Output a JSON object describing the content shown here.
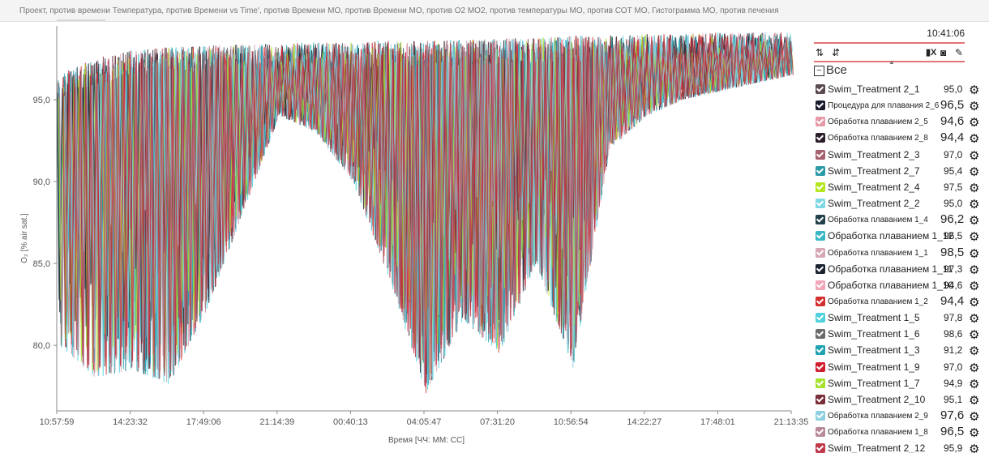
{
  "header": {
    "tabs_text": "Проект, против времени Температура, против Времени vs Time', против Времени МО, против Времени МО, против О2 МО2, против температуры МО, против СОТ МО, Гистограмма МО, против печения"
  },
  "panel": {
    "clock": "10:41:06",
    "all_label": "Все",
    "icons": [
      "sort-asc-icon",
      "sort-desc-icon",
      "excel-icon",
      "camera-icon",
      "wrench-icon"
    ],
    "items": [
      {
        "label": "Swim_Treatment 2_1",
        "value": "95,0",
        "color": "#5b4a4f"
      },
      {
        "label": "Процедура для плавания 2_6",
        "value": "96,5",
        "color": "#1b1b2e"
      },
      {
        "label": "Обработка плаванием 2_5",
        "value": "94,6",
        "color": "#e79aa8"
      },
      {
        "label": "Обработка плаванием 2_8",
        "value": "94,4",
        "color": "#2b1e2a"
      },
      {
        "label": "Swim_Treatment 2_3",
        "value": "97,0",
        "color": "#a7606d"
      },
      {
        "label": "Swim_Treatment 2_7",
        "value": "95,4",
        "color": "#2b9aa7"
      },
      {
        "label": "Swim_Treatment 2_4",
        "value": "97,5",
        "color": "#b5e61d"
      },
      {
        "label": "Swim_Treatment 2_2",
        "value": "95,0",
        "color": "#7fd8e4"
      },
      {
        "label": "Обработка плаванием 1_4",
        "value": "96,2",
        "color": "#22404a"
      },
      {
        "label": "Обработка плаванием 1_12",
        "value": "96,5",
        "color": "#3bb8c6"
      },
      {
        "label": "Обработка плаванием 1_1",
        "value": "98,5",
        "color": "#d7a7b6"
      },
      {
        "label": "Обработка плаванием 1_11",
        "value": "97,3",
        "color": "#1a2330"
      },
      {
        "label": "Обработка плаванием 1_10",
        "value": "94,6",
        "color": "#f2a5b6"
      },
      {
        "label": "Обработка плаванием 1_2",
        "value": "94,4",
        "color": "#d32f2f"
      },
      {
        "label": "Swim_Treatment 1_5",
        "value": "97,8",
        "color": "#4fd0de"
      },
      {
        "label": "Swim_Treatment 1_6",
        "value": "98,6",
        "color": "#6b6b6b"
      },
      {
        "label": "Swim_Treatment 1_3",
        "value": "91,2",
        "color": "#1fa3b3"
      },
      {
        "label": "Swim_Treatment 1_9",
        "value": "97,0",
        "color": "#d11f2f"
      },
      {
        "label": "Swim_Treatment 1_7",
        "value": "94,9",
        "color": "#a6e22e"
      },
      {
        "label": "Swim_Treatment 2_10",
        "value": "95,1",
        "color": "#7a2e3a"
      },
      {
        "label": "Обработка плаванием 2_9",
        "value": "97,6",
        "color": "#8fd0e0"
      },
      {
        "label": "Обработка плаванием 1_8",
        "value": "96,5",
        "color": "#b88a9a"
      },
      {
        "label": "Swim_Treatment 2_12",
        "value": "95,9",
        "color": "#c0394a"
      }
    ]
  },
  "chart_data": {
    "type": "line",
    "ylabel": "O₂ [% air sat.]",
    "xlabel": "Время [ЧЧ: ММ: СС]",
    "ylim": [
      76,
      99.5
    ],
    "y_ticks": [
      "95,0",
      "90,0",
      "85,0",
      "80,0"
    ],
    "x_ticks": [
      "10:57:59",
      "14:23:32",
      "17:49:06",
      "21:14:39",
      "00:40:13",
      "04:05:47",
      "07:31:20",
      "10:56:54",
      "14:22:27",
      "17:48:01",
      "21:13:35"
    ],
    "envelope": {
      "x": [
        0,
        0.5,
        1,
        1.5,
        2,
        2.5,
        3,
        3.5,
        4,
        4.5,
        5,
        5.5,
        6,
        6.5,
        7,
        7.5,
        8,
        8.5,
        9,
        9.5,
        10
      ],
      "upper": [
        96.5,
        97.5,
        98.0,
        98.2,
        98.3,
        98.4,
        98.4,
        98.5,
        98.5,
        98.6,
        98.6,
        98.7,
        98.7,
        98.8,
        98.9,
        98.9,
        99.0,
        99.0,
        99.1,
        99.1,
        99.1
      ],
      "lower": [
        80.0,
        78.0,
        78.5,
        77.6,
        82.0,
        88.0,
        94.0,
        93.0,
        90.0,
        84.0,
        77.0,
        81.5,
        79.5,
        85.0,
        78.5,
        92.0,
        94.0,
        95.0,
        95.5,
        96.0,
        96.5
      ]
    }
  }
}
